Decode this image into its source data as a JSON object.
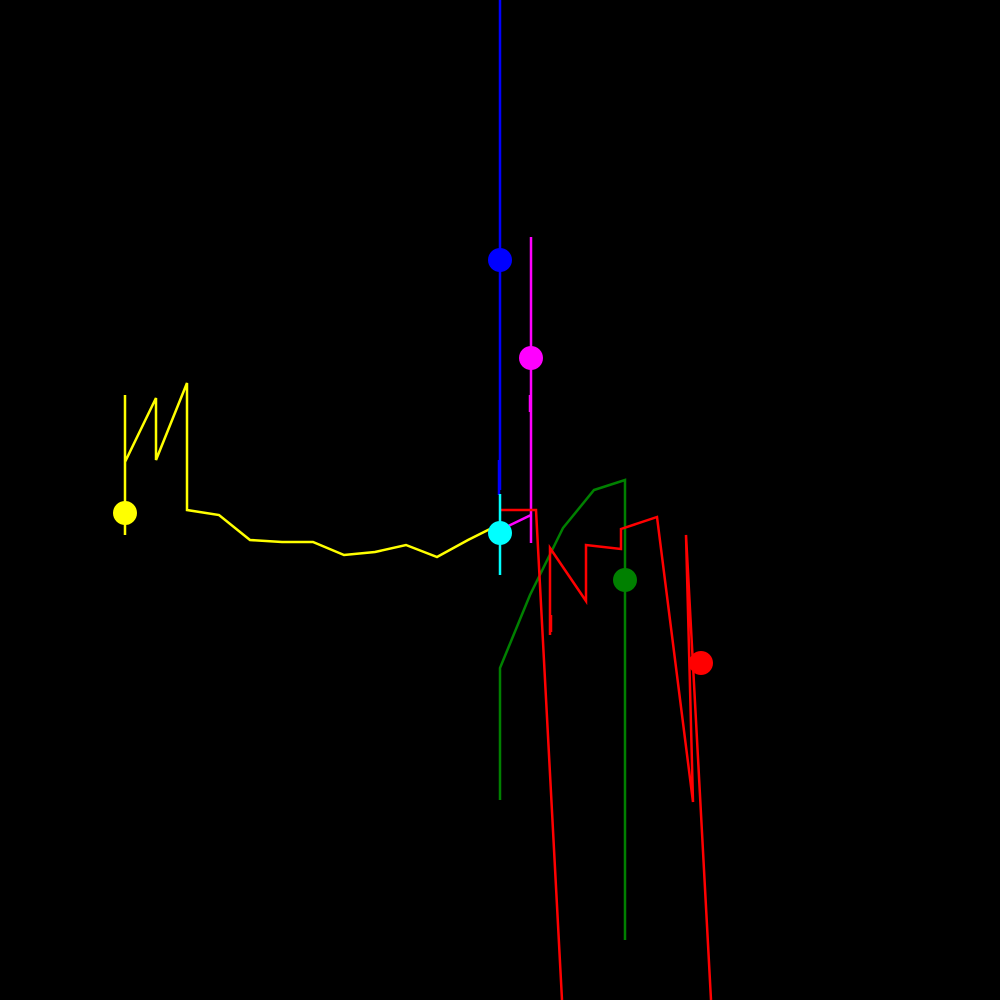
{
  "scene": {
    "background_color": "#000000"
  },
  "players": [
    {
      "id": "blue",
      "color": "#0000ff"
    },
    {
      "id": "magenta",
      "color": "#ff00ff"
    },
    {
      "id": "yellow",
      "color": "#ffff00"
    },
    {
      "id": "cyan",
      "color": "#00ffff"
    },
    {
      "id": "green",
      "color": "#008000"
    },
    {
      "id": "red",
      "color": "#ff0000"
    }
  ]
}
